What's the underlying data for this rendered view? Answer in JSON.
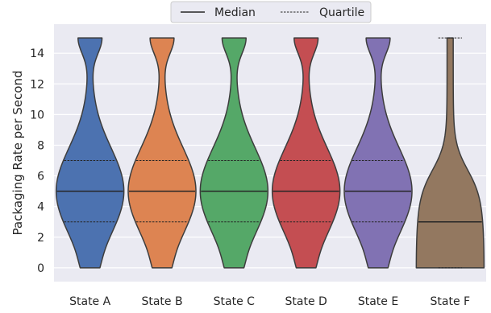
{
  "chart_data": {
    "type": "violin",
    "title": "",
    "xlabel": "",
    "ylabel": "Packaging Rate per Second",
    "ylim": [
      -0.9,
      15.9
    ],
    "yticks": [
      0,
      2,
      4,
      6,
      8,
      10,
      12,
      14
    ],
    "grid": true,
    "legend": {
      "placement": "top-center",
      "entries": [
        {
          "label": "Median",
          "style": "solid"
        },
        {
          "label": "Quartile",
          "style": "dashed"
        }
      ]
    },
    "series": [
      {
        "name": "State A",
        "color": "#4C72B0",
        "min": 0,
        "q1": 3,
        "median": 5,
        "q3": 7,
        "max": 15
      },
      {
        "name": "State B",
        "color": "#DD8452",
        "min": 0,
        "q1": 3,
        "median": 5,
        "q3": 7,
        "max": 15
      },
      {
        "name": "State C",
        "color": "#55A868",
        "min": 0,
        "q1": 3,
        "median": 5,
        "q3": 7,
        "max": 15
      },
      {
        "name": "State D",
        "color": "#C44E52",
        "min": 0,
        "q1": 3,
        "median": 5,
        "q3": 7,
        "max": 15
      },
      {
        "name": "State E",
        "color": "#8172B3",
        "min": 0,
        "q1": 3,
        "median": 5,
        "q3": 7,
        "max": 15
      },
      {
        "name": "State F",
        "color": "#937860",
        "min": 0,
        "q1": 0,
        "median": 3,
        "q3": 15,
        "max": 15
      }
    ]
  }
}
